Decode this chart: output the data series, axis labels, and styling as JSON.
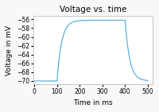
{
  "title": "Voltage vs. time",
  "xlabel": "Time in ms",
  "ylabel": "Voltage in mV",
  "xlim": [
    -5,
    520
  ],
  "ylim": [
    -70.8,
    -55.3
  ],
  "yticks": [
    -70,
    -68,
    -66,
    -64,
    -62,
    -60,
    -58,
    -56
  ],
  "xticks": [
    0,
    100,
    200,
    300,
    400,
    500
  ],
  "line_color": "#5aafe0",
  "bg_color": "#ffffff",
  "fig_bg_color": "#f8f8f8",
  "v_rest": -70.0,
  "v_plateau": -56.2,
  "t_start": 100,
  "t_end": 400,
  "tau_rise": 20.0,
  "tau_fall": 20.0,
  "t_max": 500,
  "dt": 0.2
}
